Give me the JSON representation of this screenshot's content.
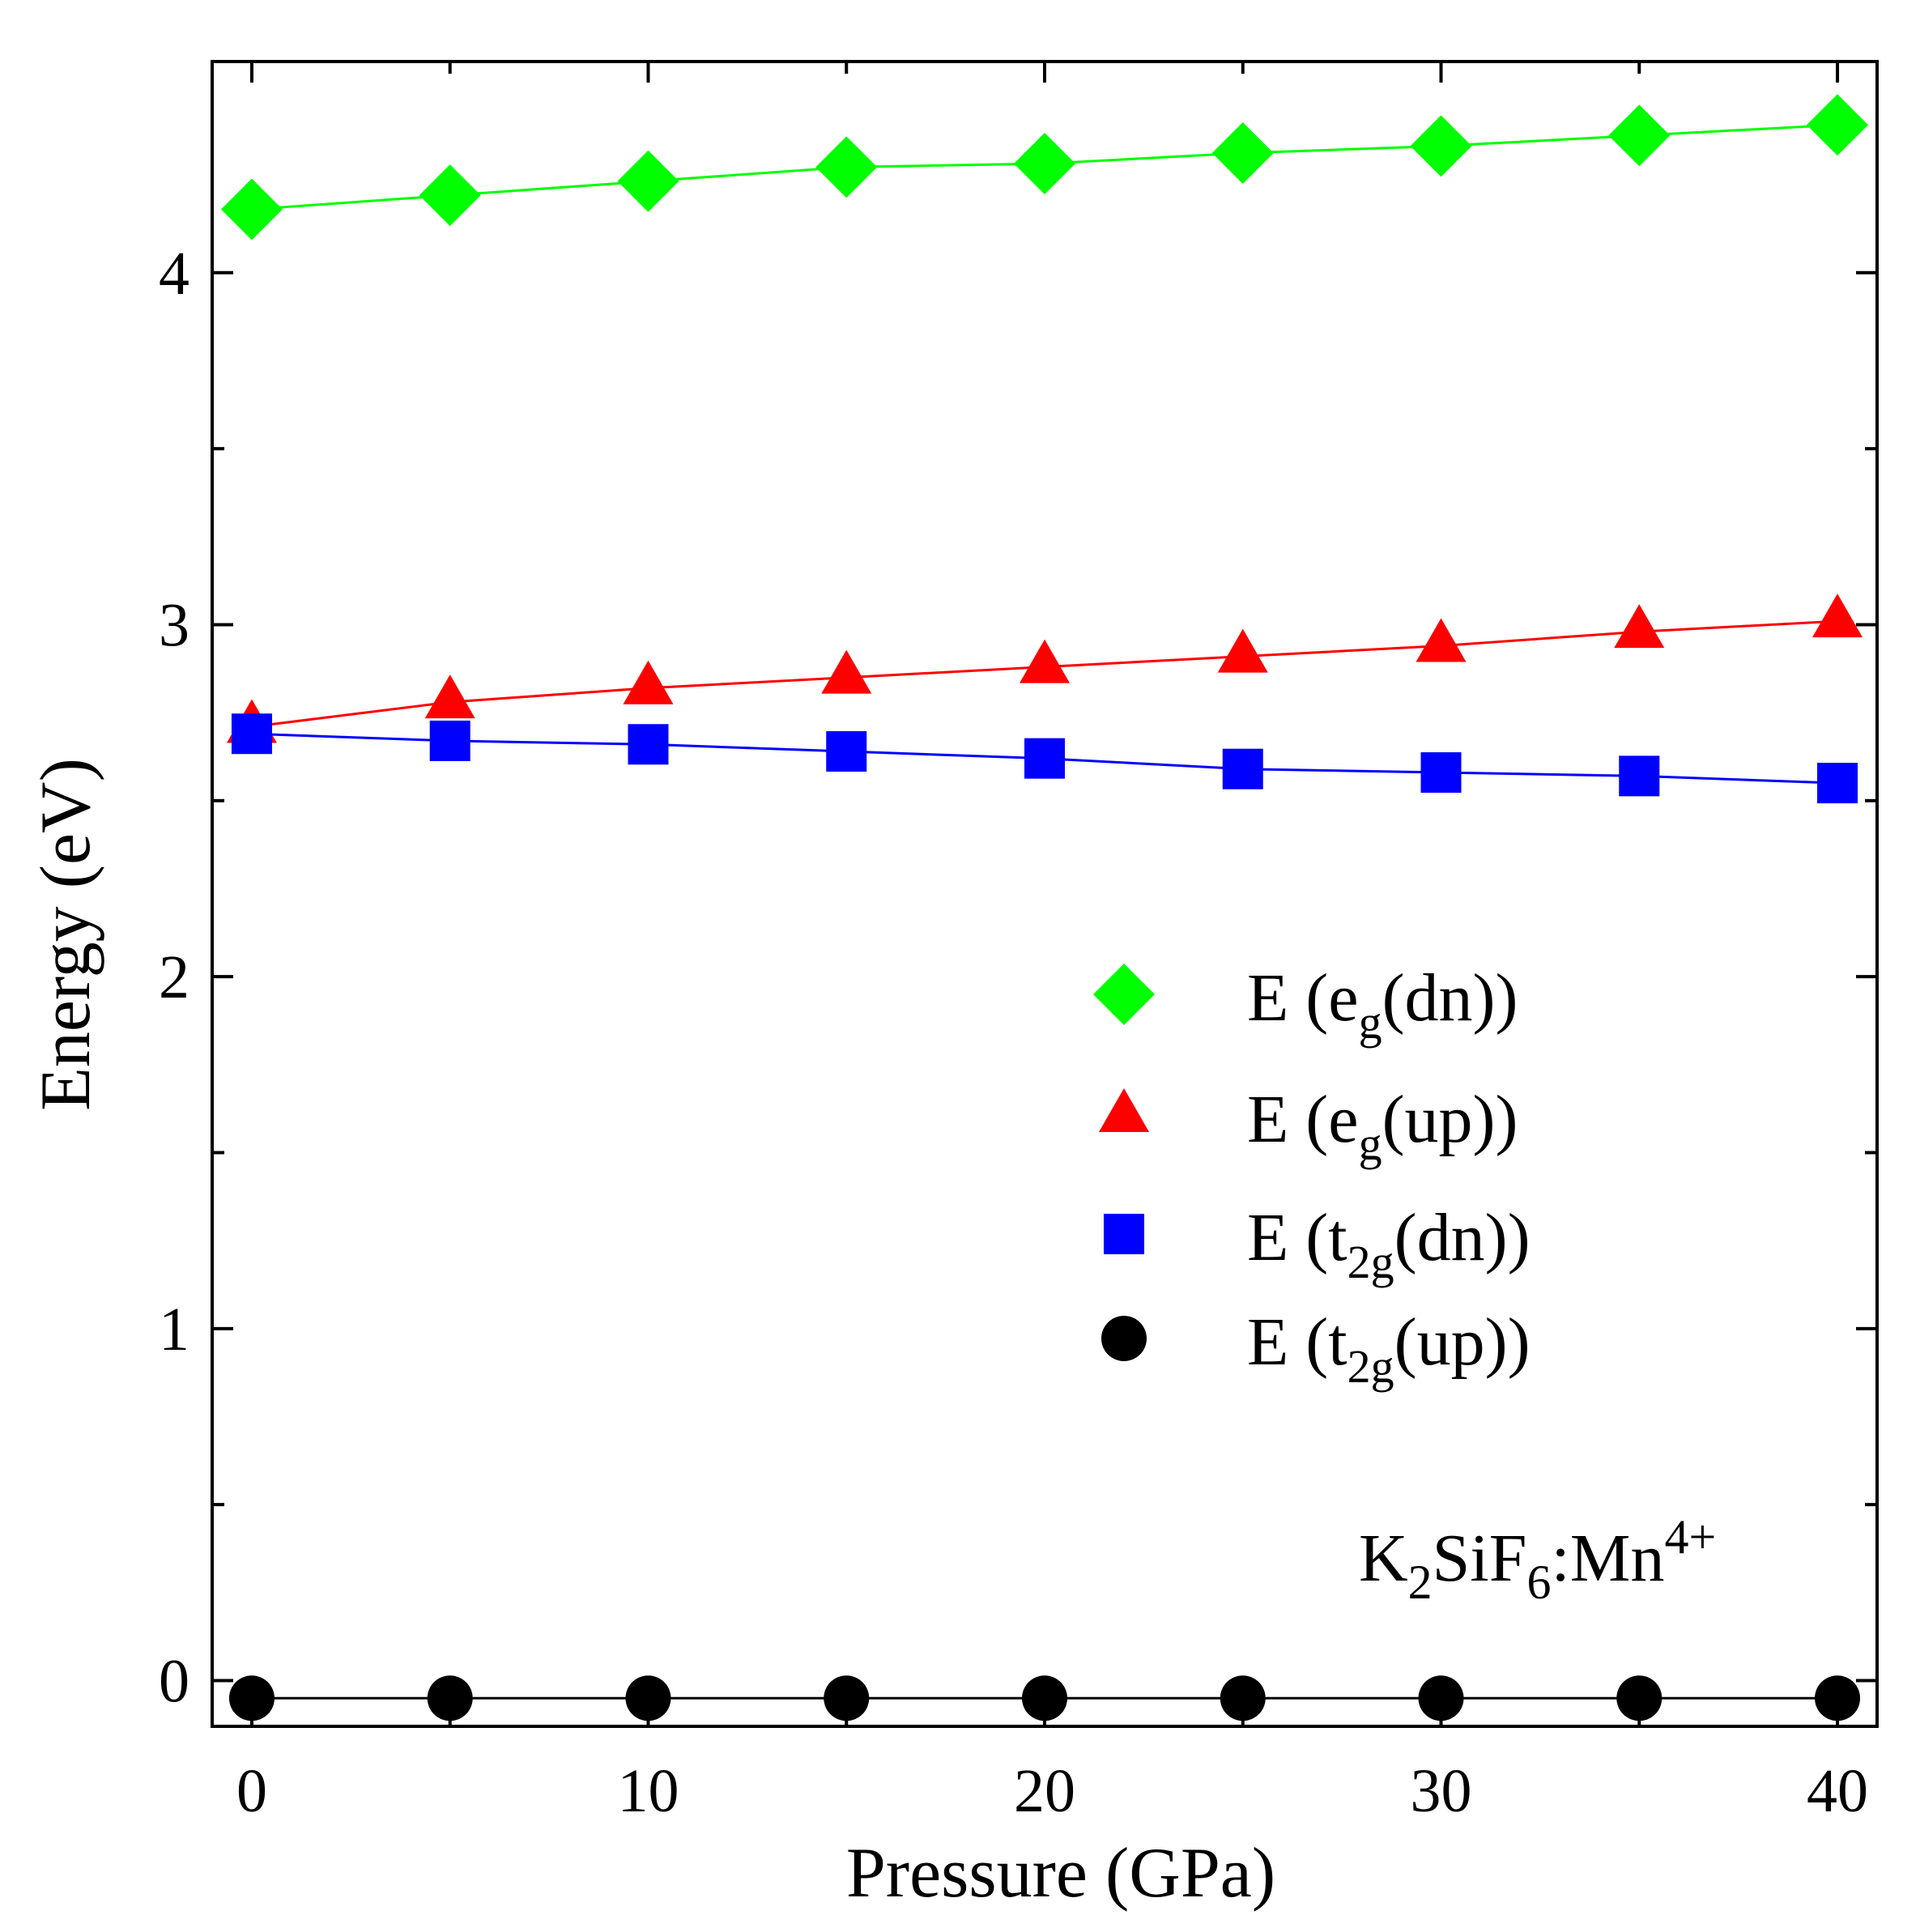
{
  "chart_data": {
    "type": "line",
    "title": "",
    "xlabel": "Pressure (GPa)",
    "ylabel": "Energy (eV)",
    "xlim": [
      -1,
      41
    ],
    "ylim": [
      -0.13,
      4.6
    ],
    "x_ticks": [
      0,
      10,
      20,
      30,
      40
    ],
    "y_ticks": [
      0,
      1,
      2,
      3,
      4
    ],
    "x_tick_labels": [
      "0",
      "10",
      "20",
      "30",
      "40"
    ],
    "y_tick_labels": [
      "0",
      "1",
      "2",
      "3",
      "4"
    ],
    "x_minor_ticks": [
      5,
      15,
      25,
      35
    ],
    "y_minor_ticks": [
      0.5,
      1.5,
      2.5,
      3.5
    ],
    "grid": false,
    "legend_position": "center-right",
    "x": [
      0,
      5,
      10,
      15,
      20,
      25,
      30,
      35,
      40
    ],
    "series": [
      {
        "name": "E (eg(dn))",
        "legend_main": "E (e",
        "legend_sub": "g",
        "legend_tail": "(dn))",
        "marker": "diamond",
        "color": "#00ff00",
        "values": [
          4.18,
          4.22,
          4.26,
          4.3,
          4.31,
          4.34,
          4.36,
          4.39,
          4.42
        ]
      },
      {
        "name": "E (eg(up))",
        "legend_main": "E (e",
        "legend_sub": "g",
        "legend_tail": "(up))",
        "marker": "triangle",
        "color": "#ff0000",
        "values": [
          2.71,
          2.78,
          2.82,
          2.85,
          2.88,
          2.91,
          2.94,
          2.98,
          3.01
        ]
      },
      {
        "name": "E (t2g(dn))",
        "legend_main": "E (t",
        "legend_sub": "2g",
        "legend_tail": "(dn))",
        "marker": "square",
        "color": "#0000ff",
        "values": [
          2.69,
          2.67,
          2.66,
          2.64,
          2.62,
          2.59,
          2.58,
          2.57,
          2.55
        ]
      },
      {
        "name": "E (t2g(up))",
        "legend_main": "E (t",
        "legend_sub": "2g",
        "legend_tail": "(up))",
        "marker": "circle",
        "color": "#000000",
        "values": [
          -0.05,
          -0.05,
          -0.05,
          -0.05,
          -0.05,
          -0.05,
          -0.05,
          -0.05,
          -0.05
        ]
      }
    ],
    "annotation": {
      "main": "K",
      "sub1": "2",
      "mid": "SiF",
      "sub2": "6",
      "tail": ":Mn",
      "sup": "4+",
      "text": "K2SiF6:Mn4+"
    }
  }
}
